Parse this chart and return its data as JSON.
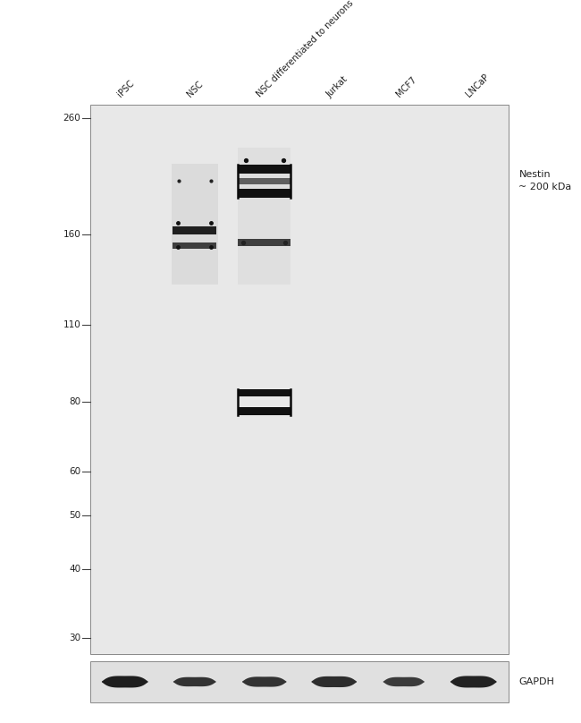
{
  "figure_width": 6.5,
  "figure_height": 8.08,
  "background_color": "#ffffff",
  "blot_bg_color": "#e8e8e8",
  "gapdh_bg_color": "#e0e0e0",
  "lane_labels": [
    "iPSC",
    "NSC",
    "NSC differentiated to neurons",
    "Jurkat",
    "MCF7",
    "LNCaP"
  ],
  "mw_markers": [
    260,
    160,
    110,
    80,
    60,
    50,
    40,
    30
  ],
  "nestin_label": "Nestin\n~ 200 kDa",
  "gapdh_label": "GAPDH",
  "bx": 0.155,
  "bw": 0.72,
  "by": 0.095,
  "bh": 0.76,
  "gx": 0.155,
  "gy": 0.028,
  "gw": 0.72,
  "gh": 0.058
}
